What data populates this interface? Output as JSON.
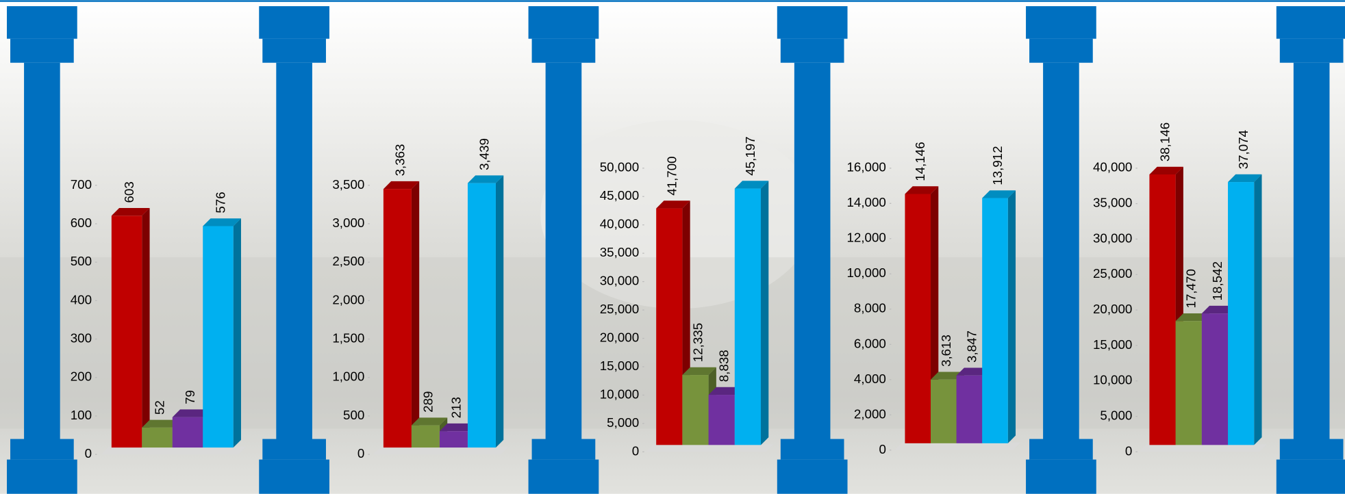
{
  "chart_data": [
    {
      "type": "bar",
      "categories": [
        null,
        null,
        null,
        null
      ],
      "values": [
        603,
        52,
        79,
        576
      ],
      "colors": [
        "#c00000",
        "#77933c",
        "#7030a0",
        "#00b0f0"
      ],
      "ylim": [
        0,
        700
      ],
      "yticks": [
        0,
        100,
        200,
        300,
        400,
        500,
        600,
        700
      ]
    },
    {
      "type": "bar",
      "categories": [
        null,
        null,
        null,
        null
      ],
      "values": [
        3363,
        289,
        213,
        3439
      ],
      "value_labels": [
        "3,363",
        "289",
        "213",
        "3,439"
      ],
      "colors": [
        "#c00000",
        "#77933c",
        "#7030a0",
        "#00b0f0"
      ],
      "ylim": [
        0,
        3500
      ],
      "yticks": [
        0,
        500,
        {
          "value": 1000,
          "label": "1,000"
        },
        {
          "value": 1500,
          "label": "1,500"
        },
        {
          "value": 2000,
          "label": "2,000"
        },
        {
          "value": 2500,
          "label": "2,500"
        },
        {
          "value": 3000,
          "label": "3,000"
        },
        {
          "value": 3500,
          "label": "3,500"
        }
      ]
    },
    {
      "type": "bar",
      "categories": [
        null,
        null,
        null,
        null
      ],
      "values": [
        41700,
        12335,
        8838,
        45197
      ],
      "value_labels": [
        "41,700",
        "12,335",
        "8,838",
        "45,197"
      ],
      "colors": [
        "#c00000",
        "#77933c",
        "#7030a0",
        "#00b0f0"
      ],
      "ylim": [
        0,
        50000
      ],
      "yticks": [
        0,
        {
          "value": 5000,
          "label": "5,000"
        },
        {
          "value": 10000,
          "label": "10,000"
        },
        {
          "value": 15000,
          "label": "15,000"
        },
        {
          "value": 20000,
          "label": "20,000"
        },
        {
          "value": 25000,
          "label": "25,000"
        },
        {
          "value": 30000,
          "label": "30,000"
        },
        {
          "value": 35000,
          "label": "35,000"
        },
        {
          "value": 40000,
          "label": "40,000"
        },
        {
          "value": 45000,
          "label": "45,000"
        },
        {
          "value": 50000,
          "label": "50,000"
        }
      ]
    },
    {
      "type": "bar",
      "categories": [
        null,
        null,
        null,
        null
      ],
      "values": [
        14146,
        3613,
        3847,
        13912
      ],
      "value_labels": [
        "14,146",
        "3,613",
        "3,847",
        "13,912"
      ],
      "colors": [
        "#c00000",
        "#77933c",
        "#7030a0",
        "#00b0f0"
      ],
      "ylim": [
        0,
        16000
      ],
      "yticks": [
        0,
        {
          "value": 2000,
          "label": "2,000"
        },
        {
          "value": 4000,
          "label": "4,000"
        },
        {
          "value": 6000,
          "label": "6,000"
        },
        {
          "value": 8000,
          "label": "8,000"
        },
        {
          "value": 10000,
          "label": "10,000"
        },
        {
          "value": 12000,
          "label": "12,000"
        },
        {
          "value": 14000,
          "label": "14,000"
        },
        {
          "value": 16000,
          "label": "16,000"
        }
      ]
    },
    {
      "type": "bar",
      "categories": [
        null,
        null,
        null,
        null
      ],
      "values": [
        38146,
        17470,
        18542,
        37074
      ],
      "value_labels": [
        "38,146",
        "17,470",
        "18,542",
        "37,074"
      ],
      "colors": [
        "#c00000",
        "#77933c",
        "#7030a0",
        "#00b0f0"
      ],
      "ylim": [
        0,
        40000
      ],
      "yticks": [
        0,
        {
          "value": 5000,
          "label": "5,000"
        },
        {
          "value": 10000,
          "label": "10,000"
        },
        {
          "value": 15000,
          "label": "15,000"
        },
        {
          "value": 20000,
          "label": "20,000"
        },
        {
          "value": 25000,
          "label": "25,000"
        },
        {
          "value": 30000,
          "label": "30,000"
        },
        {
          "value": 35000,
          "label": "35,000"
        },
        {
          "value": 40000,
          "label": "40,000"
        }
      ]
    }
  ]
}
